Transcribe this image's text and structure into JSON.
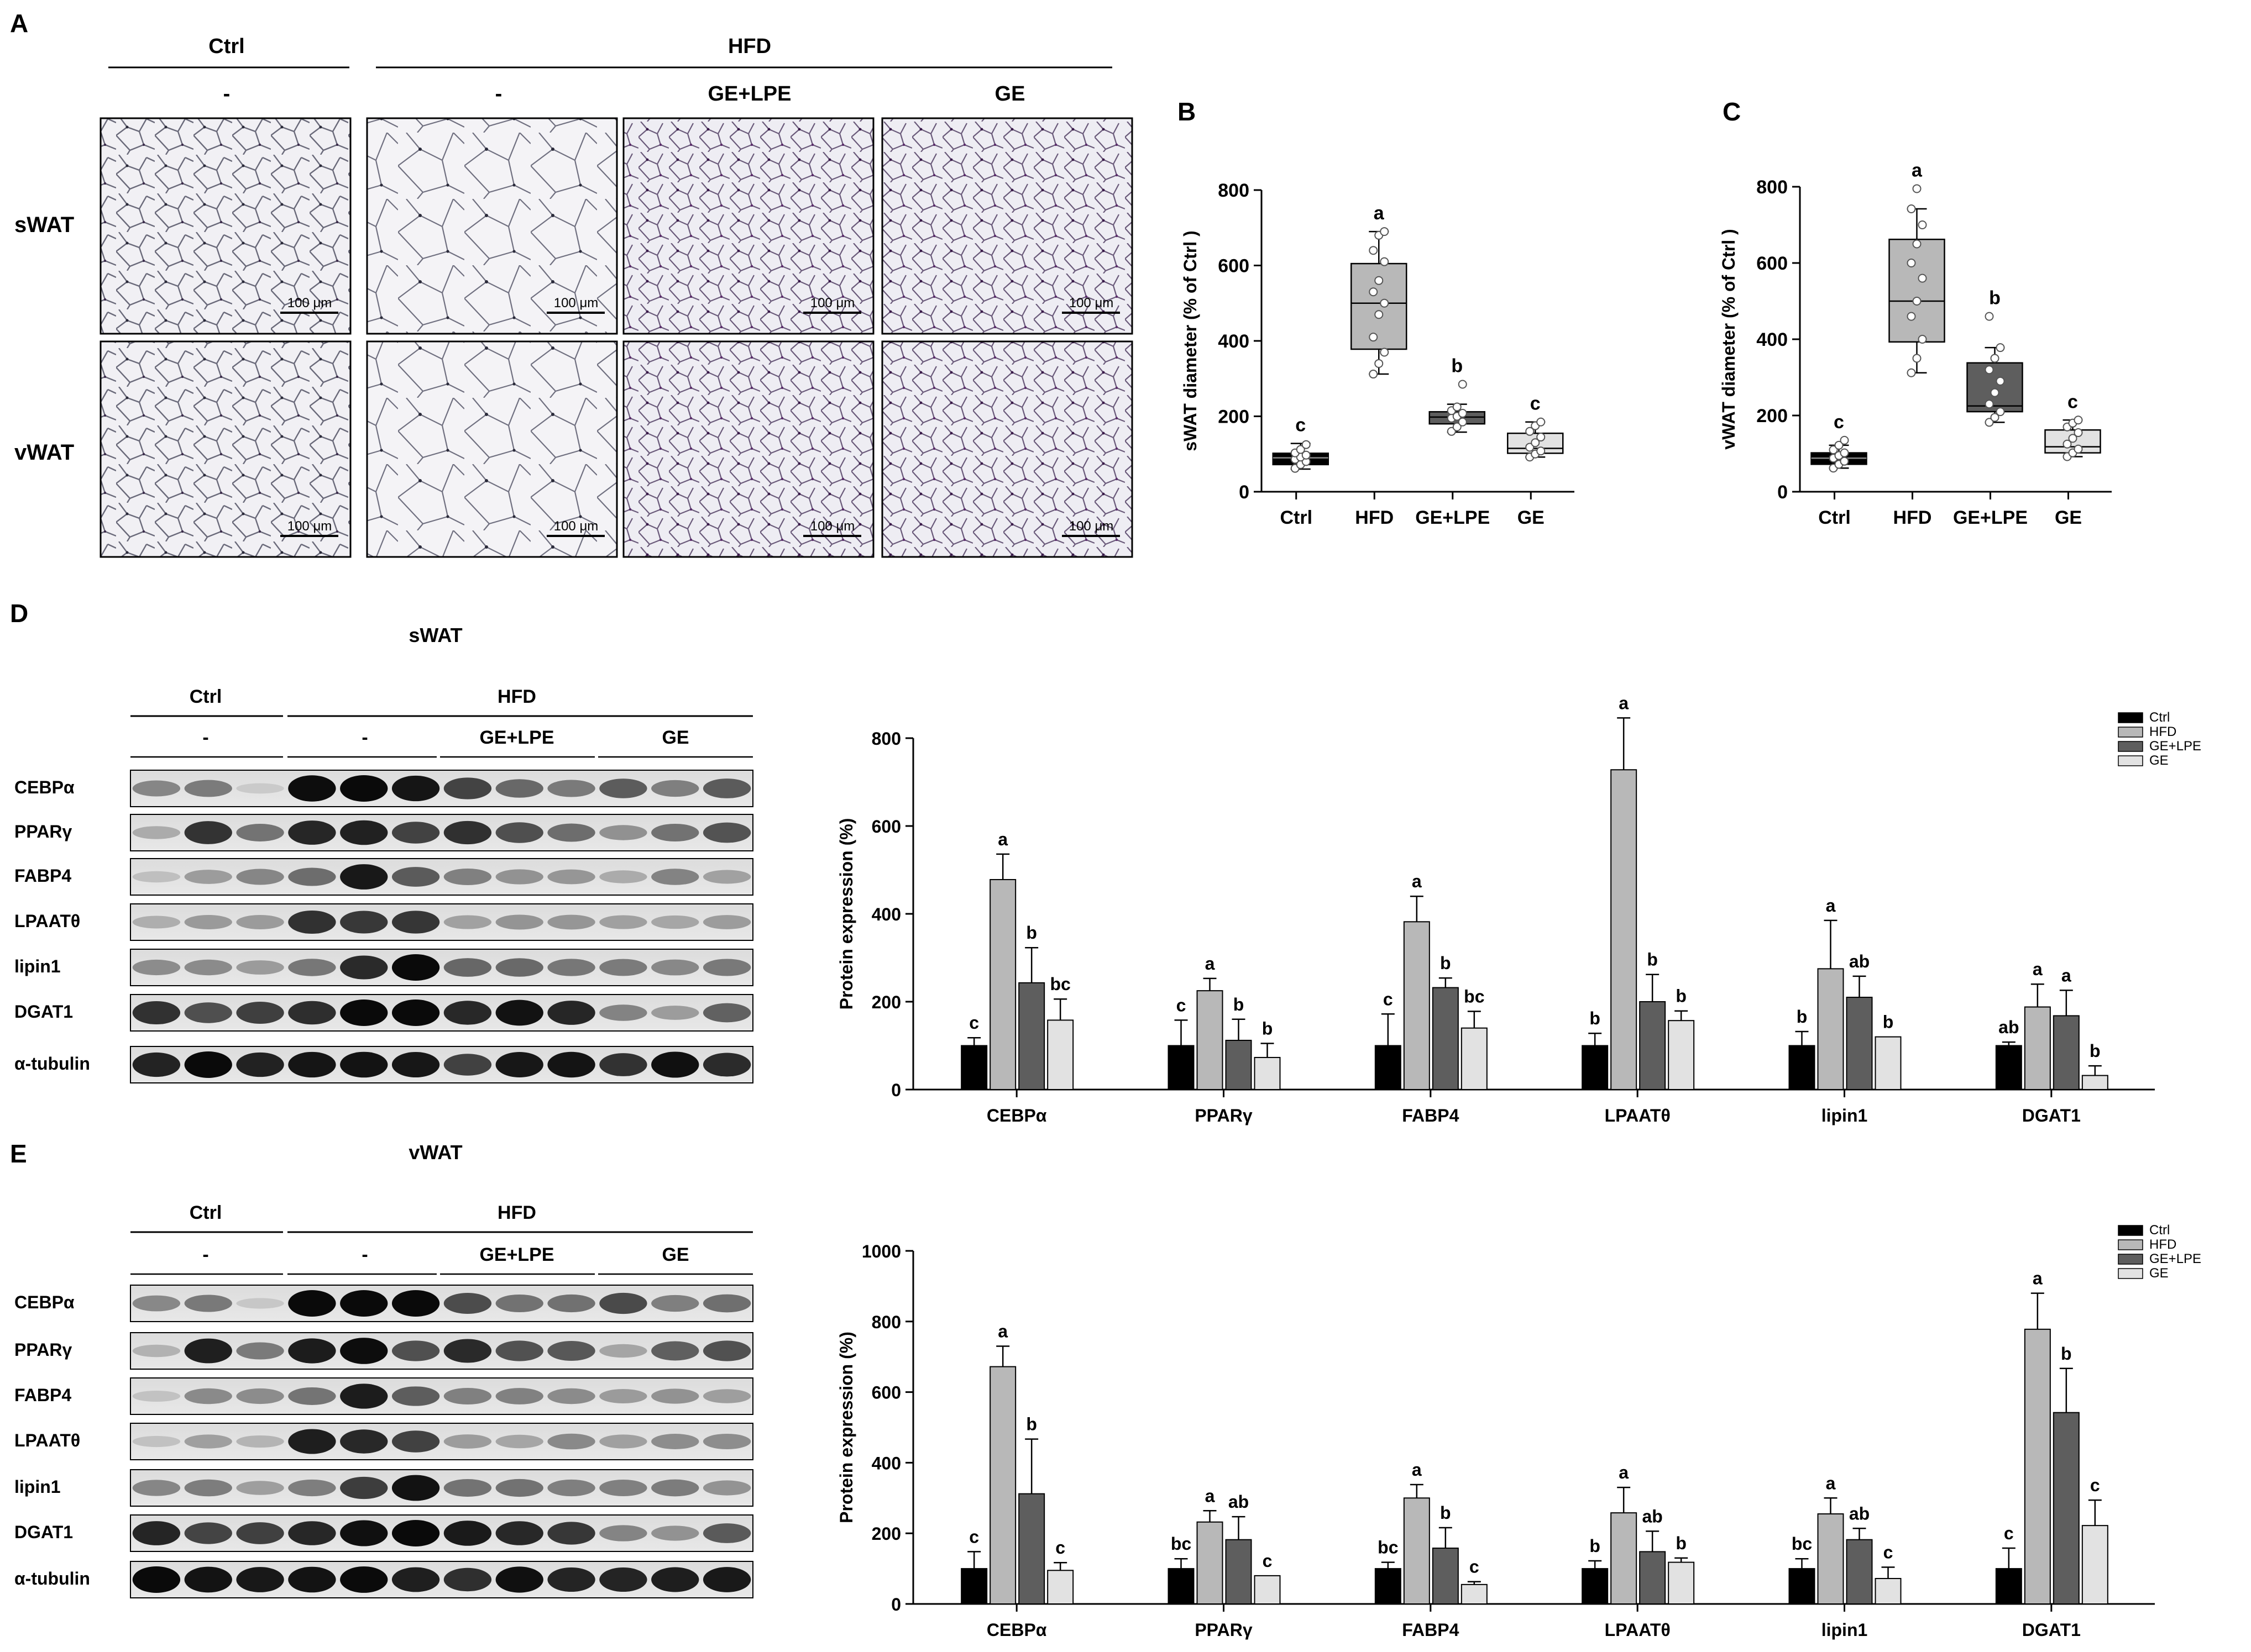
{
  "panel_letters": [
    "A",
    "B",
    "C",
    "D",
    "E"
  ],
  "histology": {
    "group_ctrl": "Ctrl",
    "group_hfd": "HFD",
    "sub_labels": [
      "-",
      "-",
      "GE+LPE",
      "GE"
    ],
    "row_labels": [
      "sWAT",
      "vWAT"
    ],
    "scale_bar": "100 μm"
  },
  "colors": {
    "ctrl": "#000000",
    "hfd": "#b8b8b8",
    "ge_lpe": "#5e5e5e",
    "ge": "#e2e2e2"
  },
  "blots": [
    {
      "title": "sWAT",
      "group_ctrl": "Ctrl",
      "group_hfd": "HFD",
      "sub_labels": [
        "-",
        "-",
        "GE+LPE",
        "GE"
      ],
      "proteins": [
        "CEBPα",
        "PPARγ",
        "FABP4",
        "LPAATθ",
        "lipin1",
        "DGAT1",
        "α-tubulin"
      ]
    },
    {
      "title": "vWAT",
      "group_ctrl": "Ctrl",
      "group_hfd": "HFD",
      "sub_labels": [
        "-",
        "-",
        "GE+LPE",
        "GE"
      ],
      "proteins": [
        "CEBPα",
        "PPARγ",
        "FABP4",
        "LPAATθ",
        "lipin1",
        "DGAT1",
        "α-tubulin"
      ]
    }
  ],
  "chart_data": [
    {
      "type": "box",
      "panel": "B",
      "categories": [
        "Ctrl",
        "HFD",
        "GE+LPE",
        "GE"
      ],
      "ylabel": "sWAT diameter (% of Ctrl )",
      "ylim": [
        0,
        800
      ],
      "yticks": [
        0,
        200,
        400,
        600,
        800
      ],
      "boxes": [
        {
          "q1": 72,
          "median": 90,
          "q3": 102,
          "whisker_low": 60,
          "whisker_high": 128,
          "letter": "c",
          "points": [
            62,
            72,
            80,
            86,
            92,
            97,
            103,
            112,
            125
          ]
        },
        {
          "q1": 378,
          "median": 500,
          "q3": 605,
          "whisker_low": 312,
          "whisker_high": 690,
          "letter": "a",
          "points": [
            312,
            340,
            370,
            410,
            470,
            500,
            530,
            560,
            610,
            640,
            680,
            690
          ]
        },
        {
          "q1": 180,
          "median": 198,
          "q3": 212,
          "whisker_low": 158,
          "whisker_high": 232,
          "letter": "b",
          "points": [
            160,
            172,
            185,
            195,
            200,
            208,
            215,
            225,
            285
          ]
        },
        {
          "q1": 102,
          "median": 115,
          "q3": 155,
          "whisker_low": 92,
          "whisker_high": 185,
          "letter": "c",
          "points": [
            92,
            100,
            108,
            118,
            130,
            145,
            160,
            175,
            185
          ]
        }
      ]
    },
    {
      "type": "box",
      "panel": "C",
      "categories": [
        "Ctrl",
        "HFD",
        "GE+LPE",
        "GE"
      ],
      "ylabel": "vWAT diameter (% of Ctrl )",
      "ylim": [
        0,
        800
      ],
      "yticks": [
        0,
        200,
        400,
        600,
        800
      ],
      "boxes": [
        {
          "q1": 72,
          "median": 88,
          "q3": 102,
          "whisker_low": 62,
          "whisker_high": 122,
          "letter": "c",
          "points": [
            62,
            72,
            80,
            88,
            95,
            102,
            110,
            122,
            135
          ]
        },
        {
          "q1": 393,
          "median": 500,
          "q3": 662,
          "whisker_low": 312,
          "whisker_high": 742,
          "letter": "a",
          "points": [
            312,
            350,
            400,
            460,
            500,
            560,
            600,
            650,
            700,
            742,
            795
          ]
        },
        {
          "q1": 210,
          "median": 225,
          "q3": 338,
          "whisker_low": 182,
          "whisker_high": 378,
          "letter": "b",
          "points": [
            182,
            195,
            210,
            230,
            260,
            290,
            320,
            350,
            378,
            460
          ]
        },
        {
          "q1": 102,
          "median": 118,
          "q3": 162,
          "whisker_low": 92,
          "whisker_high": 188,
          "letter": "c",
          "points": [
            92,
            102,
            112,
            125,
            140,
            155,
            170,
            180,
            188
          ]
        }
      ]
    },
    {
      "type": "bar",
      "panel": "D",
      "categories": [
        "CEBPα",
        "PPARγ",
        "FABP4",
        "LPAATθ",
        "lipin1",
        "DGAT1"
      ],
      "ylabel": "Protein expression (%)",
      "ylim": [
        0,
        800
      ],
      "yticks": [
        0,
        200,
        400,
        600,
        800
      ],
      "legend_position": "top-right",
      "series": [
        {
          "name": "Ctrl",
          "values": [
            100,
            100,
            100,
            100,
            100,
            100
          ],
          "errors": [
            18,
            58,
            72,
            28,
            32,
            8
          ],
          "letters": [
            "c",
            "c",
            "c",
            "b",
            "b",
            "ab"
          ]
        },
        {
          "name": "HFD",
          "values": [
            478,
            225,
            382,
            728,
            275,
            188
          ],
          "errors": [
            58,
            28,
            58,
            118,
            110,
            52
          ],
          "letters": [
            "a",
            "a",
            "a",
            "a",
            "a",
            "a"
          ]
        },
        {
          "name": "GE+LPE",
          "values": [
            243,
            112,
            232,
            200,
            210,
            168
          ],
          "errors": [
            80,
            48,
            22,
            62,
            48,
            58
          ],
          "letters": [
            "b",
            "b",
            "b",
            "b",
            "ab",
            "a"
          ]
        },
        {
          "name": "GE",
          "values": [
            158,
            73,
            140,
            157,
            120,
            32
          ],
          "errors": [
            48,
            32,
            38,
            22,
            0,
            22
          ],
          "letters": [
            "bc",
            "b",
            "bc",
            "b",
            "b",
            "b"
          ]
        }
      ]
    },
    {
      "type": "bar",
      "panel": "E",
      "categories": [
        "CEBPα",
        "PPARγ",
        "FABP4",
        "LPAATθ",
        "lipin1",
        "DGAT1"
      ],
      "ylabel": "Protein expression (%)",
      "ylim": [
        0,
        1000
      ],
      "yticks": [
        0,
        200,
        400,
        600,
        800,
        1000
      ],
      "legend_position": "top-right",
      "series": [
        {
          "name": "Ctrl",
          "values": [
            100,
            100,
            100,
            100,
            100,
            100
          ],
          "errors": [
            48,
            28,
            18,
            22,
            28,
            58
          ],
          "letters": [
            "c",
            "bc",
            "bc",
            "b",
            "bc",
            "c"
          ]
        },
        {
          "name": "HFD",
          "values": [
            672,
            232,
            300,
            258,
            255,
            778
          ],
          "errors": [
            58,
            32,
            38,
            72,
            45,
            102
          ],
          "letters": [
            "a",
            "a",
            "a",
            "a",
            "a",
            "a"
          ]
        },
        {
          "name": "GE+LPE",
          "values": [
            312,
            182,
            158,
            148,
            182,
            542
          ],
          "errors": [
            155,
            65,
            58,
            58,
            32,
            125
          ],
          "letters": [
            "b",
            "ab",
            "b",
            "ab",
            "ab",
            "b"
          ]
        },
        {
          "name": "GE",
          "values": [
            95,
            80,
            55,
            118,
            72,
            222
          ],
          "errors": [
            22,
            0,
            8,
            12,
            32,
            72
          ],
          "letters": [
            "c",
            "c",
            "c",
            "b",
            "c",
            "c"
          ]
        }
      ]
    }
  ]
}
